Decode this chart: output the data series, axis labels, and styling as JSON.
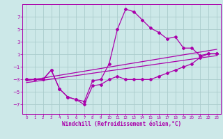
{
  "xlabel": "Windchill (Refroidissement éolien,°C)",
  "bg_color": "#cce8e8",
  "grid_color": "#aacccc",
  "line_color": "#aa00aa",
  "xlim": [
    -0.5,
    23.5
  ],
  "ylim": [
    -8.5,
    9.0
  ],
  "yticks": [
    -7,
    -5,
    -3,
    -1,
    1,
    3,
    5,
    7
  ],
  "xticks": [
    0,
    1,
    2,
    3,
    4,
    5,
    6,
    7,
    8,
    9,
    10,
    11,
    12,
    13,
    14,
    15,
    16,
    17,
    18,
    19,
    20,
    21,
    22,
    23
  ],
  "line1_x": [
    0,
    1,
    2,
    3,
    4,
    5,
    6,
    7,
    8,
    9,
    10,
    11,
    12,
    13,
    14,
    15,
    16,
    17,
    18,
    19,
    20,
    21,
    22,
    23
  ],
  "line1_y": [
    -3,
    -3,
    -3,
    -1.5,
    -4.5,
    -5.8,
    -6.2,
    -6.5,
    -3.2,
    -3,
    -0.5,
    5,
    8.2,
    7.8,
    6.5,
    5.2,
    4.5,
    3.5,
    3.8,
    2,
    2,
    0.8,
    1.1,
    1.1
  ],
  "line2_x": [
    0,
    1,
    2,
    3,
    4,
    5,
    6,
    7,
    8,
    9,
    10,
    11,
    12,
    13,
    14,
    15,
    16,
    17,
    18,
    19,
    20,
    21,
    22,
    23
  ],
  "line2_y": [
    -3,
    -3,
    -3,
    -1.5,
    -4.5,
    -5.8,
    -6.2,
    -7,
    -4,
    -3.8,
    -3,
    -2.5,
    -3,
    -3,
    -3,
    -3,
    -2.5,
    -2,
    -1.5,
    -1,
    -0.5,
    0.5,
    1.1,
    1.1
  ],
  "line3_x": [
    0,
    23
  ],
  "line3_y": [
    -3.2,
    1.8
  ],
  "line4_x": [
    0,
    23
  ],
  "line4_y": [
    -3.5,
    0.8
  ]
}
